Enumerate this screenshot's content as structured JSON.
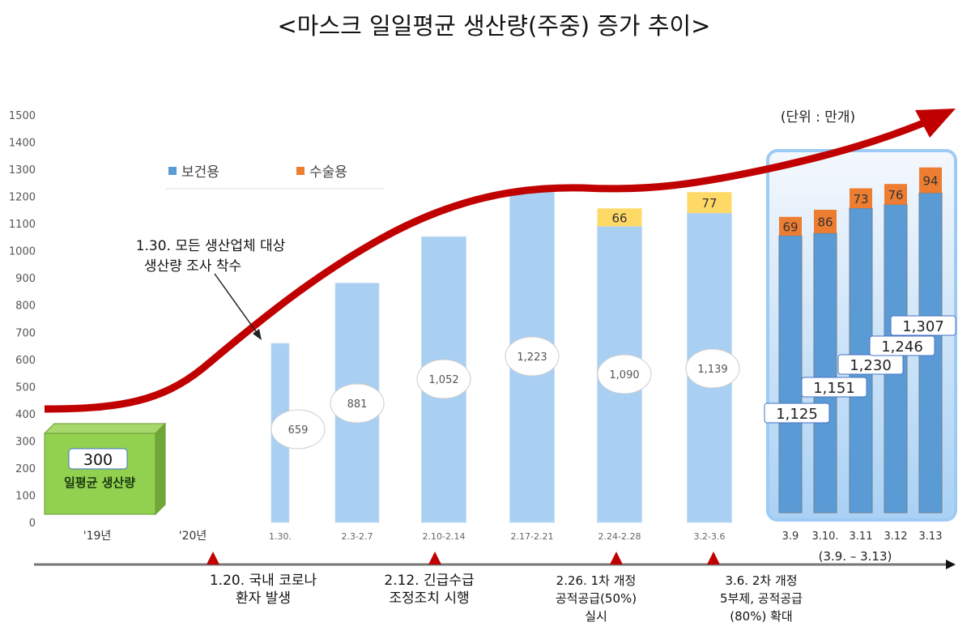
{
  "chart_data": {
    "type": "bar",
    "title": "<마스크 일일평균 생산량(주중) 증가 추이>",
    "unit_note": "(단위 : 만개)",
    "ylim": [
      0,
      1500
    ],
    "yticks": [
      0,
      100,
      200,
      300,
      400,
      500,
      600,
      700,
      800,
      900,
      1000,
      1100,
      1200,
      1300,
      1400,
      1500
    ],
    "legend": {
      "placement": "top-left",
      "items": [
        {
          "name": "보건용",
          "color": "#5b9bd5"
        },
        {
          "name": "수술용",
          "color": "#ed7d31"
        }
      ]
    },
    "baseline": {
      "year_label": "'19년",
      "value": 300,
      "value_label": "300",
      "caption": "일평균 생산량",
      "color": "#92d050"
    },
    "year2020_label": "'20년",
    "categories": [
      "1.30.",
      "2.3-2.7",
      "2.10-2.14",
      "2.17-2.21",
      "2.24-2.28",
      "3.2-3.6",
      "3.9",
      "3.10.",
      "3.11",
      "3.12",
      "3.13"
    ],
    "series": [
      {
        "name": "보건용",
        "values": [
          659,
          881,
          1052,
          1223,
          1090,
          1139,
          1056,
          1065,
          1157,
          1170,
          1213
        ]
      },
      {
        "name": "수술용",
        "values": [
          null,
          null,
          null,
          null,
          66,
          77,
          69,
          86,
          73,
          76,
          94
        ]
      }
    ],
    "value_labels": [
      "659",
      "881",
      "1,052",
      "1,223",
      "1,090",
      "1,139",
      "1,125",
      "1,151",
      "1,230",
      "1,246",
      "1,307"
    ],
    "stack_labels": [
      "",
      "",
      "",
      "",
      "66",
      "77",
      "69",
      "86",
      "73",
      "76",
      "94"
    ],
    "highlight_range_label": "(3.9. – 3.13)",
    "trend_arrow_color": "#c00000",
    "annotation": "1.30. 모든 생산업체 대상 생산량 조사 착수",
    "annotation_lines": [
      "1.30. 모든 생산업체 대상",
      "생산량 조사 착수"
    ],
    "timeline_events": [
      {
        "lines": [
          "1.20. 국내 코로나",
          "환자 발생"
        ]
      },
      {
        "lines": [
          "2.12. 긴급수급",
          "조정조치 시행"
        ]
      },
      {
        "lines": [
          "2.26. 1차 개정",
          "공적공급(50%)",
          "실시"
        ]
      },
      {
        "lines": [
          "3.6. 2차 개정",
          "5부제, 공적공급",
          "(80%) 확대"
        ]
      }
    ]
  }
}
